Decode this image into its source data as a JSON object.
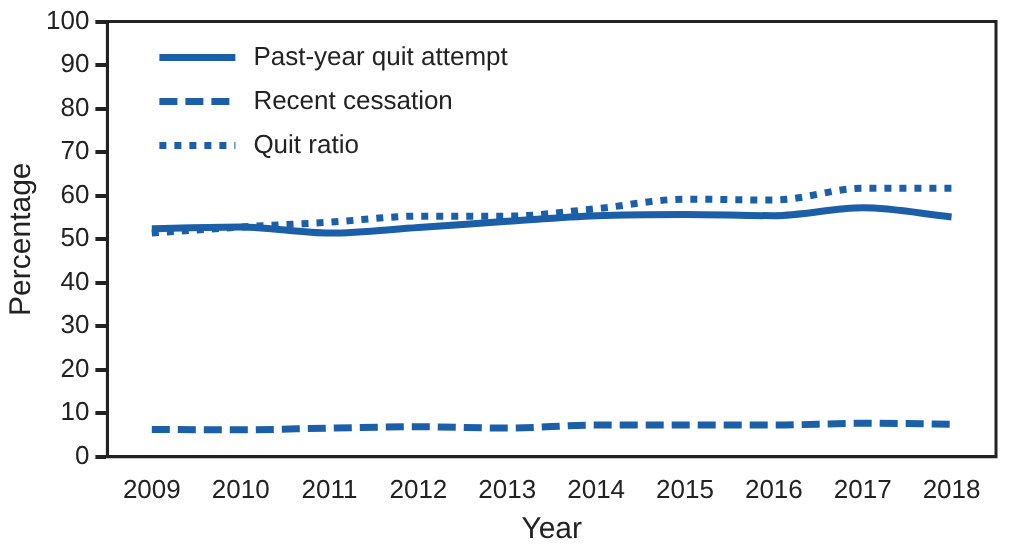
{
  "chart_data": {
    "type": "line",
    "xlabel": "Year",
    "ylabel": "Percentage",
    "categories": [
      "2009",
      "2010",
      "2011",
      "2012",
      "2013",
      "2014",
      "2015",
      "2016",
      "2017",
      "2018"
    ],
    "series": [
      {
        "name": "Past-year quit attempt",
        "color": "#1a5fa8",
        "line_style": "solid",
        "values": [
          52.4,
          52.8,
          51.4,
          52.7,
          54.1,
          55.4,
          55.7,
          55.4,
          57.2,
          55.1
        ]
      },
      {
        "name": "Recent cessation",
        "color": "#1a5fa8",
        "line_style": "dashed",
        "values": [
          6.3,
          6.2,
          6.6,
          6.9,
          6.6,
          7.3,
          7.3,
          7.3,
          7.7,
          7.5
        ]
      },
      {
        "name": "Quit ratio",
        "color": "#1a5fa8",
        "line_style": "dotted",
        "values": [
          51.4,
          52.8,
          53.9,
          55.3,
          55.3,
          57.0,
          59.2,
          59.0,
          61.7,
          61.7
        ]
      }
    ],
    "ylim": [
      0,
      100
    ],
    "yticks": [
      0,
      10,
      20,
      30,
      40,
      50,
      60,
      70,
      80,
      90,
      100
    ],
    "grid": false,
    "legend": "top left",
    "marker": "none"
  }
}
